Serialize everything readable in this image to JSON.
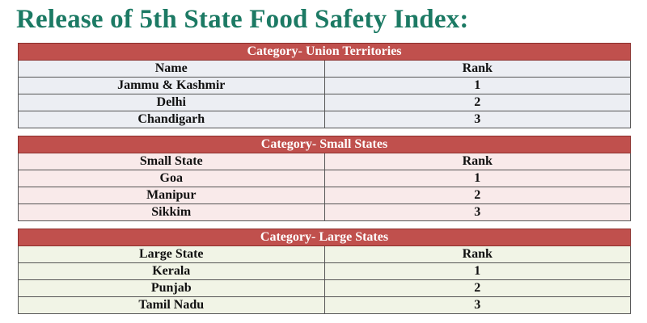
{
  "title": "Release of 5th State Food Safety Index:",
  "tables": [
    {
      "category": "Category- Union Territories",
      "col1": "Name",
      "col2": "Rank",
      "rows": [
        {
          "name": "Jammu & Kashmir",
          "rank": "1"
        },
        {
          "name": "Delhi",
          "rank": "2"
        },
        {
          "name": "Chandigarh",
          "rank": "3"
        }
      ]
    },
    {
      "category": "Category- Small States",
      "col1": "Small State",
      "col2": "Rank",
      "rows": [
        {
          "name": "Goa",
          "rank": "1"
        },
        {
          "name": "Manipur",
          "rank": "2"
        },
        {
          "name": "Sikkim",
          "rank": "3"
        }
      ]
    },
    {
      "category": "Category- Large States",
      "col1": "Large State",
      "col2": "Rank",
      "rows": [
        {
          "name": "Kerala",
          "rank": "1"
        },
        {
          "name": "Punjab",
          "rank": "2"
        },
        {
          "name": "Tamil Nadu",
          "rank": "3"
        }
      ]
    }
  ],
  "colors": {
    "title": "#1c7a64",
    "category_header": "#c0504d",
    "ut_rows": "#eceef3",
    "small_rows": "#f9eaea",
    "large_rows": "#f1f4e6"
  }
}
